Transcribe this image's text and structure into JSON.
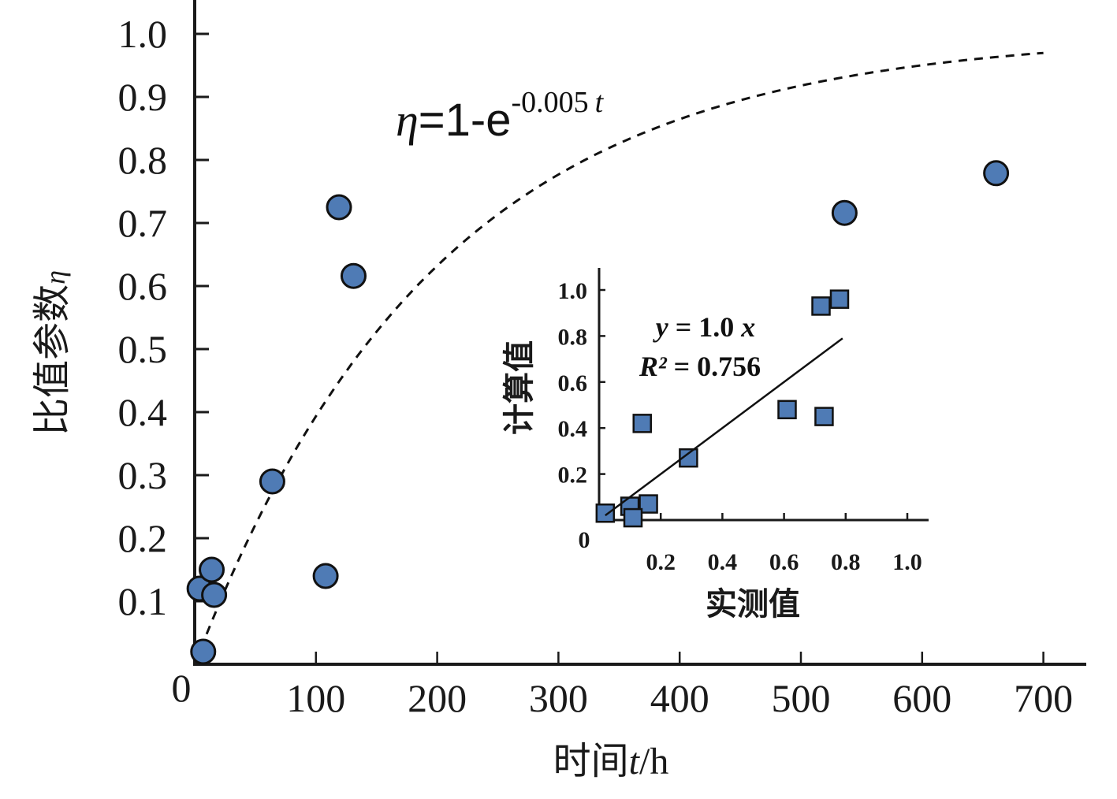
{
  "chart_data": [
    {
      "type": "scatter",
      "title": "",
      "xlabel": "时间t/h",
      "xlabel_parts": {
        "prefix": "时间",
        "var": "t",
        "suffix": "/h"
      },
      "ylabel": "比值参数η",
      "ylabel_parts": {
        "prefix": "比值参数",
        "var": "η"
      },
      "xlim": [
        0,
        740
      ],
      "ylim": [
        0,
        1.05
      ],
      "x_ticks": [
        100,
        200,
        300,
        400,
        500,
        600,
        700
      ],
      "x_tick_labels": [
        "100",
        "200",
        "300",
        "400",
        "500",
        "600",
        "700"
      ],
      "y_ticks": [
        0.1,
        0.2,
        0.3,
        0.4,
        0.5,
        0.6,
        0.7,
        0.8,
        0.9,
        1.0
      ],
      "y_tick_labels": [
        "0.1",
        "0.2",
        "0.3",
        "0.4",
        "0.5",
        "0.6",
        "0.7",
        "0.8",
        "0.9",
        "1.0"
      ],
      "origin_label": "0",
      "grid": false,
      "marker": "circle",
      "marker_color": "#4f7bb5",
      "series": [
        {
          "name": "实测值",
          "x": [
            7,
            4,
            14,
            16,
            64,
            108,
            119,
            131,
            536,
            661
          ],
          "y": [
            0.02,
            0.12,
            0.15,
            0.11,
            0.29,
            0.14,
            0.725,
            0.616,
            0.716,
            0.779
          ]
        }
      ],
      "fit_curve": {
        "name": "η=1-e^(-0.005t)",
        "style": "dashed",
        "k": 0.005,
        "x_range": [
          5,
          700
        ]
      },
      "annotation": {
        "lhs": "η",
        "mid": "=1-e",
        "exponent": "-0.005",
        "exponent_var": "t"
      }
    },
    {
      "type": "scatter",
      "title": "",
      "xlabel": "实测值",
      "ylabel": "计算值",
      "xlim": [
        0,
        1.07
      ],
      "ylim": [
        0,
        1.1
      ],
      "x_ticks": [
        0.2,
        0.4,
        0.6,
        0.8,
        1.0
      ],
      "x_tick_labels": [
        "0.2",
        "0.4",
        "0.6",
        "0.8",
        "1.0"
      ],
      "y_ticks": [
        0.2,
        0.4,
        0.6,
        0.8,
        1.0
      ],
      "y_tick_labels": [
        "0.2",
        "0.4",
        "0.6",
        "0.8",
        "1.0"
      ],
      "origin_label": "0",
      "grid": false,
      "marker": "square",
      "marker_color": "#4f7bb5",
      "series": [
        {
          "name": "计算值 vs 实测值",
          "x": [
            0.02,
            0.1,
            0.16,
            0.11,
            0.14,
            0.29,
            0.61,
            0.73,
            0.72,
            0.78
          ],
          "y": [
            0.03,
            0.06,
            0.07,
            0.01,
            0.42,
            0.27,
            0.48,
            0.45,
            0.93,
            0.96
          ]
        }
      ],
      "fit_line": {
        "slope": 1.0,
        "x_range": [
          0.02,
          0.79
        ]
      },
      "annotation": {
        "line1_var": "y",
        "line1_rest": " = 1.0 ",
        "line1_var2": "x",
        "line2_var": "R²",
        "line2_rest": " = 0.756"
      }
    }
  ]
}
